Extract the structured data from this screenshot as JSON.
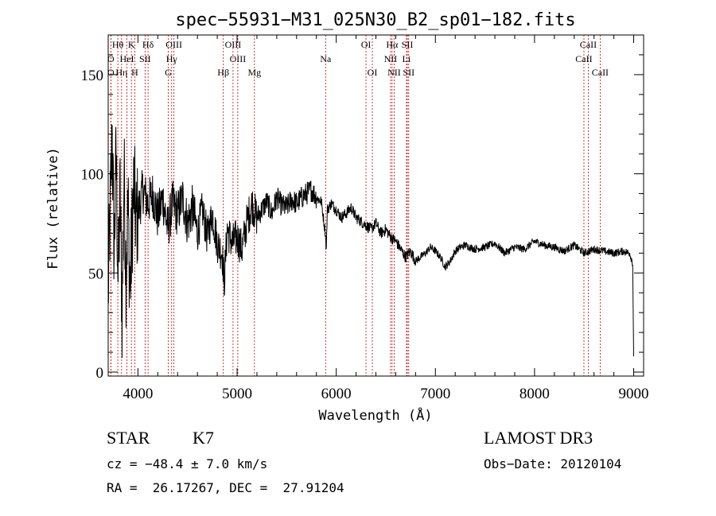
{
  "chart_data": {
    "type": "line",
    "title": "spec−55931−M31_025N30_B2_sp01−182.fits",
    "xlabel": "Wavelength (Å)",
    "ylabel": "Flux (relative)",
    "xlim": [
      3700,
      9100
    ],
    "ylim": [
      -2,
      170
    ],
    "x_ticks": [
      4000,
      5000,
      6000,
      7000,
      8000,
      9000
    ],
    "y_ticks": [
      0,
      50,
      100,
      150
    ],
    "series": [
      {
        "name": "flux",
        "x": [
          3700,
          3720,
          3740,
          3760,
          3780,
          3800,
          3820,
          3840,
          3860,
          3880,
          3900,
          3920,
          3940,
          3960,
          3980,
          4000,
          4050,
          4100,
          4150,
          4200,
          4250,
          4300,
          4350,
          4400,
          4450,
          4500,
          4550,
          4600,
          4650,
          4700,
          4750,
          4800,
          4850,
          4870,
          4900,
          4950,
          5000,
          5050,
          5100,
          5150,
          5200,
          5250,
          5300,
          5350,
          5400,
          5450,
          5500,
          5550,
          5600,
          5650,
          5700,
          5750,
          5800,
          5850,
          5890,
          5900,
          5910,
          5950,
          6000,
          6050,
          6100,
          6150,
          6200,
          6250,
          6300,
          6350,
          6400,
          6450,
          6500,
          6550,
          6600,
          6650,
          6700,
          6750,
          6800,
          6850,
          6900,
          6950,
          7000,
          7050,
          7100,
          7150,
          7200,
          7250,
          7300,
          7400,
          7500,
          7600,
          7700,
          7800,
          7900,
          8000,
          8100,
          8200,
          8300,
          8400,
          8500,
          8600,
          8700,
          8800,
          8900,
          8960,
          8990,
          9000
        ],
        "values": [
          40,
          80,
          120,
          60,
          110,
          45,
          90,
          30,
          100,
          50,
          85,
          40,
          70,
          95,
          75,
          80,
          92,
          85,
          90,
          78,
          88,
          72,
          85,
          80,
          88,
          75,
          83,
          70,
          82,
          68,
          80,
          65,
          60,
          45,
          72,
          65,
          68,
          62,
          76,
          85,
          78,
          82,
          86,
          80,
          88,
          84,
          83,
          87,
          85,
          88,
          90,
          92,
          88,
          86,
          70,
          62,
          82,
          85,
          82,
          78,
          80,
          83,
          78,
          76,
          74,
          72,
          75,
          70,
          72,
          68,
          66,
          62,
          58,
          61,
          56,
          58,
          60,
          63,
          61,
          58,
          53,
          56,
          61,
          63,
          64,
          62,
          63,
          65,
          60,
          63,
          62,
          66,
          64,
          63,
          61,
          64,
          60,
          62,
          61,
          60,
          61,
          60,
          55,
          8
        ]
      }
    ],
    "lines": [
      {
        "label": "Hθ",
        "wl": 3797,
        "row": 0
      },
      {
        "label": "O",
        "wl": 3727,
        "row": 1
      },
      {
        "label": "O",
        "wl": 3727,
        "row": 2
      },
      {
        "label": "Hη",
        "wl": 3835,
        "row": 2
      },
      {
        "label": "K",
        "wl": 3934,
        "row": 0
      },
      {
        "label": "HeI",
        "wl": 3889,
        "row": 1
      },
      {
        "label": "H",
        "wl": 3968,
        "row": 2
      },
      {
        "label": "Hδ",
        "wl": 4102,
        "row": 0
      },
      {
        "label": "SII",
        "wl": 4072,
        "row": 1
      },
      {
        "label": "OIII",
        "wl": 4363,
        "row": 0
      },
      {
        "label": "Hγ",
        "wl": 4340,
        "row": 1
      },
      {
        "label": "G",
        "wl": 4305,
        "row": 2
      },
      {
        "label": "Hβ",
        "wl": 4861,
        "row": 2
      },
      {
        "label": "OIII",
        "wl": 4959,
        "row": 0
      },
      {
        "label": "OIII",
        "wl": 5007,
        "row": 1
      },
      {
        "label": "Mg",
        "wl": 5175,
        "row": 2
      },
      {
        "label": "Na",
        "wl": 5893,
        "row": 1
      },
      {
        "label": "OI",
        "wl": 6300,
        "row": 0
      },
      {
        "label": "OI",
        "wl": 6364,
        "row": 2
      },
      {
        "label": "Hα",
        "wl": 6563,
        "row": 0
      },
      {
        "label": "NII",
        "wl": 6548,
        "row": 1
      },
      {
        "label": "NII",
        "wl": 6584,
        "row": 2
      },
      {
        "label": "SII",
        "wl": 6717,
        "row": 0
      },
      {
        "label": "Li",
        "wl": 6708,
        "row": 1
      },
      {
        "label": "SII",
        "wl": 6731,
        "row": 2
      },
      {
        "label": "CaII",
        "wl": 8542,
        "row": 0
      },
      {
        "label": "CaII",
        "wl": 8498,
        "row": 1
      },
      {
        "label": "CaII",
        "wl": 8662,
        "row": 2
      }
    ],
    "colors": {
      "flux": "#000000",
      "lines": "#cc0000"
    }
  },
  "info": {
    "class": "STAR",
    "subclass": "K7",
    "survey": "LAMOST DR3",
    "cz": "cz = −48.4 ± 7.0 km/s",
    "obs_date": "Obs−Date: 20120104",
    "radec": "RA =  26.17267, DEC =  27.91204"
  }
}
